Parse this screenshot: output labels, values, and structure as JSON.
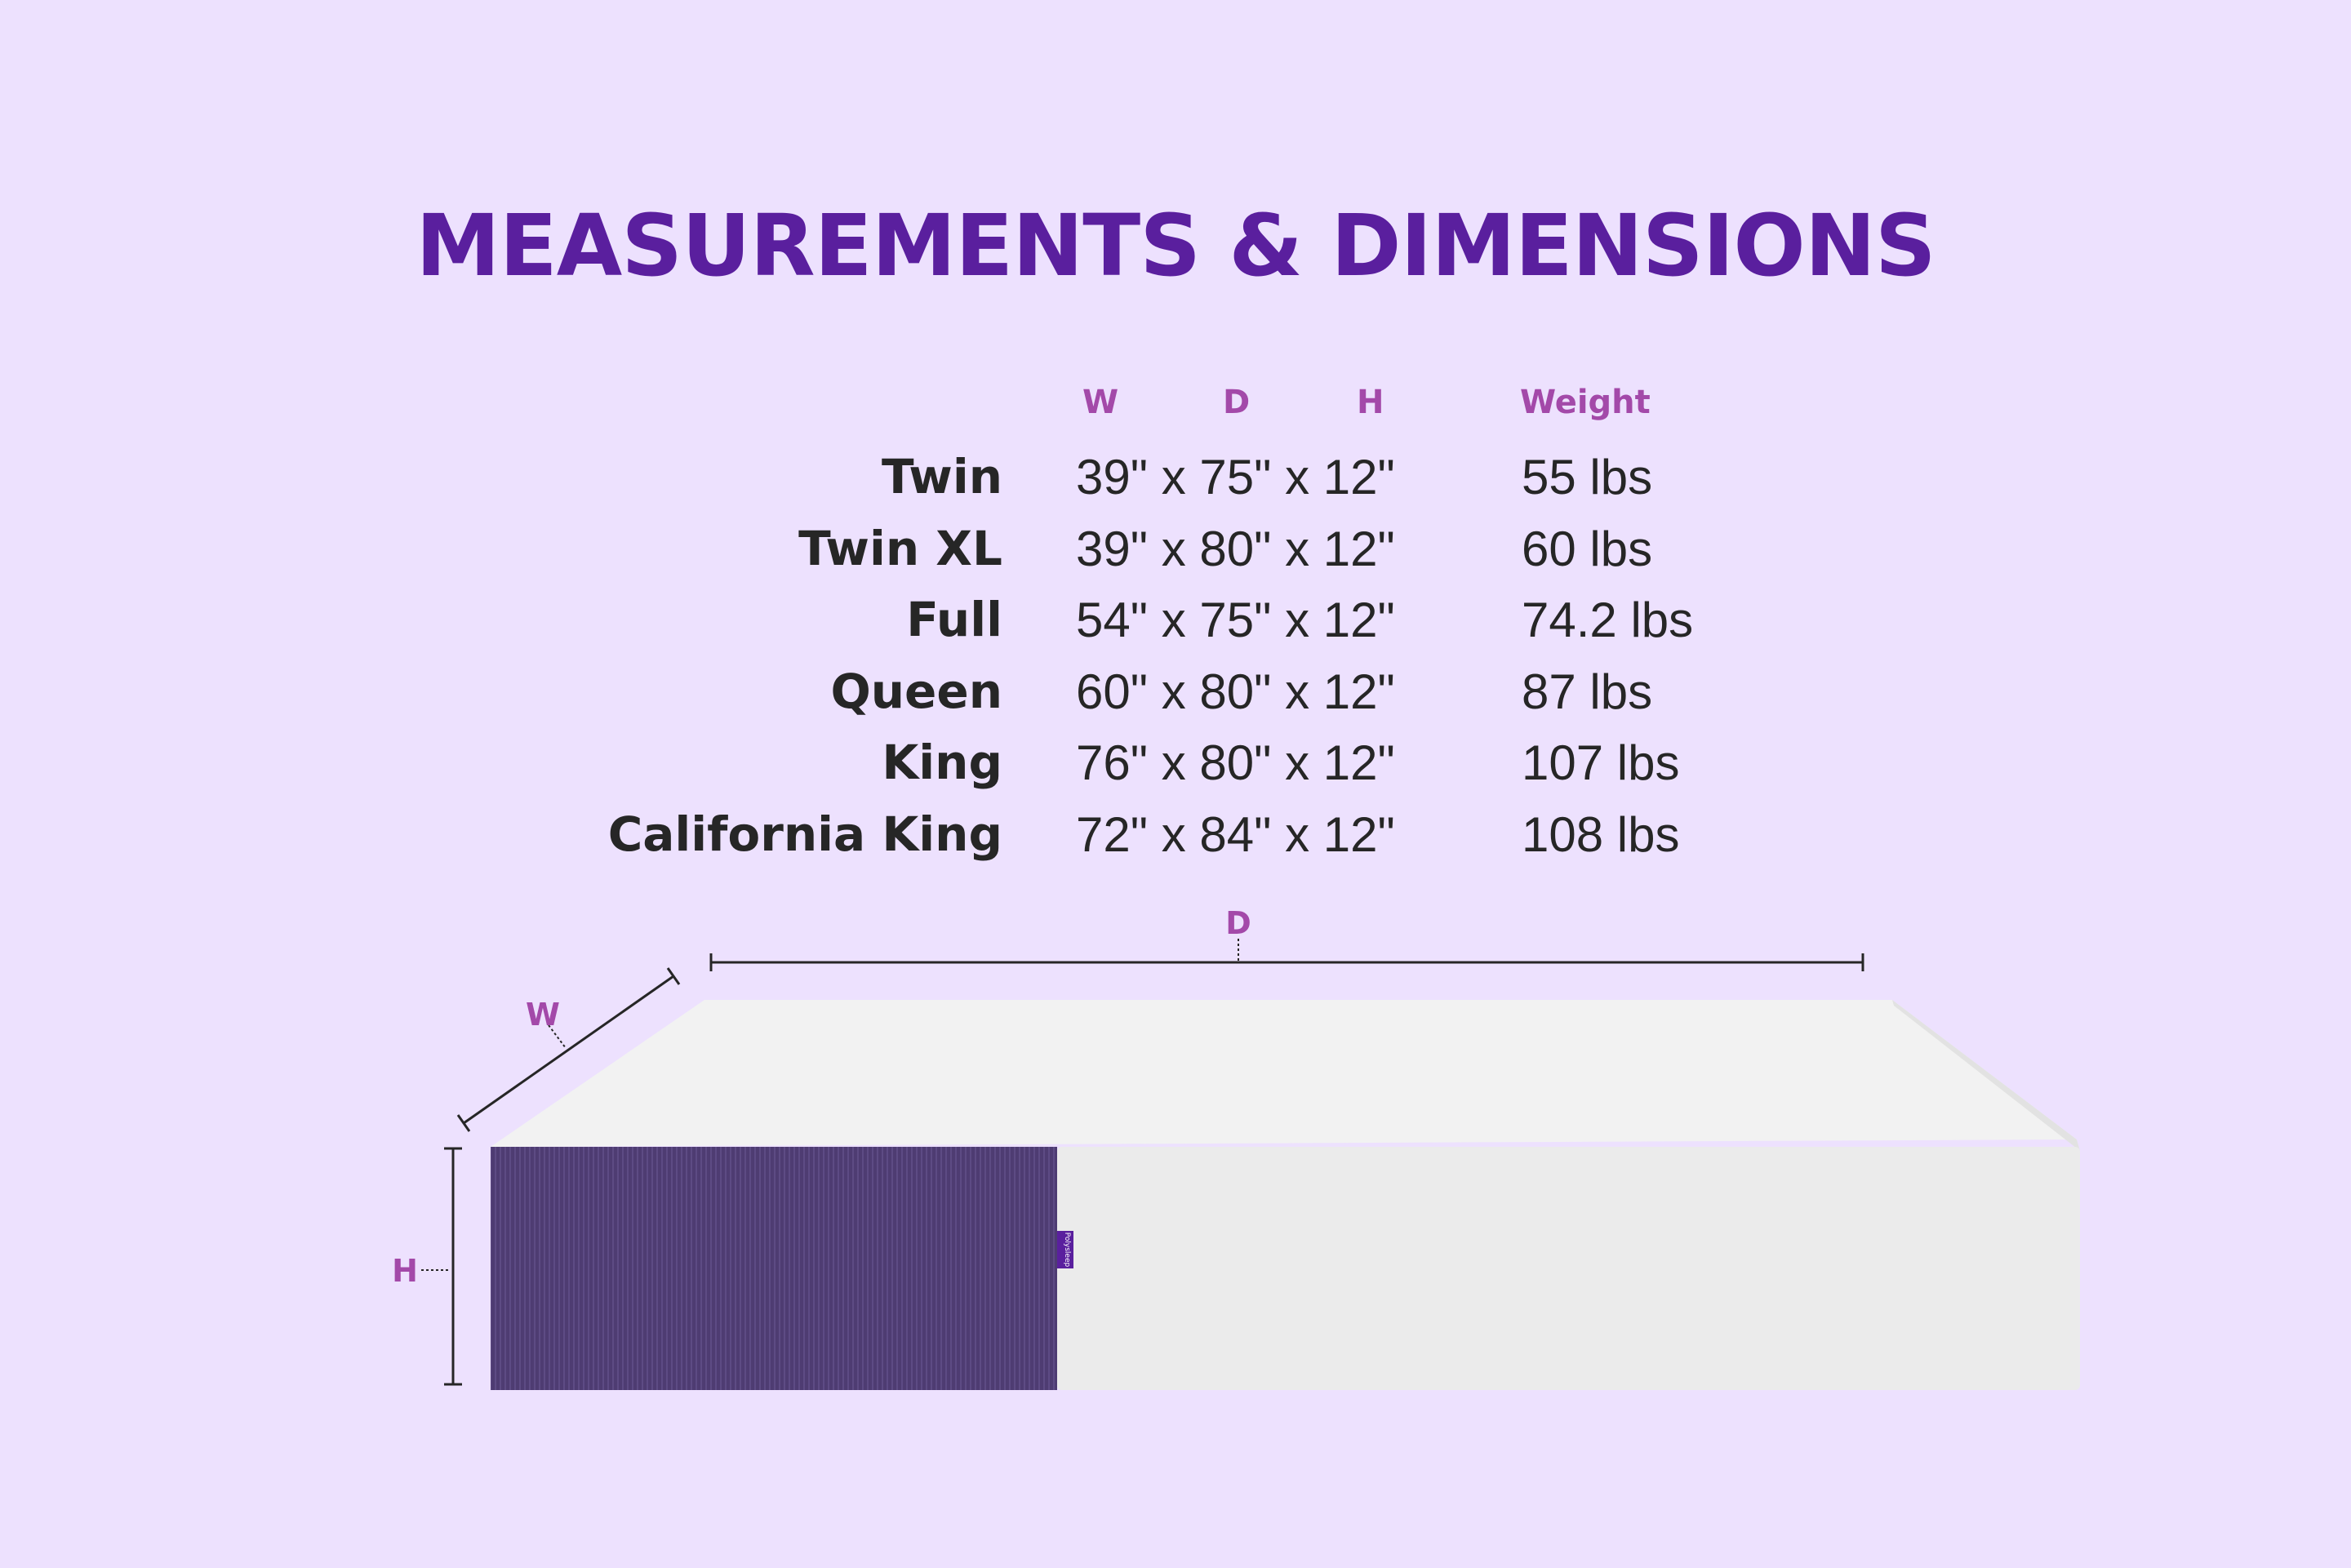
{
  "title": "MEASUREMENTS & DIMENSIONS",
  "headers": {
    "w": "W",
    "d": "D",
    "h": "H",
    "weight": "Weight"
  },
  "rows": [
    {
      "size": "Twin",
      "dims": "39\" x 75\" x 12\"",
      "weight": "55 lbs"
    },
    {
      "size": "Twin XL",
      "dims": "39\" x 80\" x 12\"",
      "weight": "60 lbs"
    },
    {
      "size": "Full",
      "dims": "54\" x 75\" x 12\"",
      "weight": "74.2 lbs"
    },
    {
      "size": "Queen",
      "dims": "60\" x 80\" x 12\"",
      "weight": "87 lbs"
    },
    {
      "size": "King",
      "dims": "76\" x 80\" x 12\"",
      "weight": "107 lbs"
    },
    {
      "size": "California King",
      "dims": "72\" x 84\" x 12\"",
      "weight": "108 lbs"
    }
  ],
  "diagram": {
    "d_label": "D",
    "w_label": "W",
    "h_label": "H",
    "tag_text": "Polysleep"
  },
  "colors": {
    "background": "#ede1fe",
    "title": "#5a1f9e",
    "accent": "#a349a9",
    "text": "#262626",
    "mattress_side": "#4e3c72",
    "mattress_white": "#ececec"
  }
}
